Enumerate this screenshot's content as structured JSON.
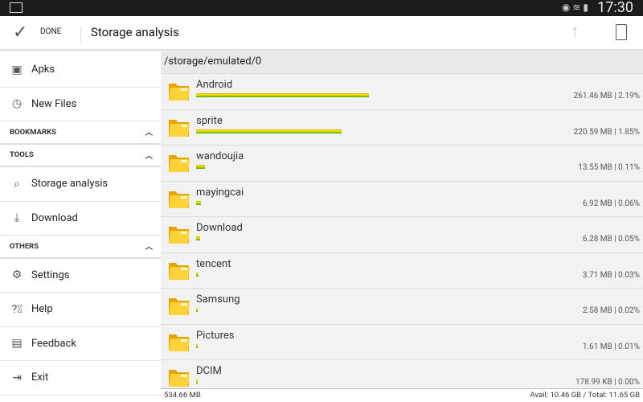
{
  "status": {
    "time": "17:30"
  },
  "actionbar": {
    "done": "DONE",
    "title": "Storage analysis"
  },
  "sidebar": {
    "top_items": [
      {
        "label": "Apks",
        "icon": "android-icon"
      },
      {
        "label": "New Files",
        "icon": "clock-icon"
      }
    ],
    "bookmarks": "BOOKMARKS",
    "tools": "TOOLS",
    "tool_items": [
      {
        "label": "Storage analysis",
        "icon": "storage-analysis-icon"
      },
      {
        "label": "Download",
        "icon": "download-icon"
      }
    ],
    "others": "OTHERS",
    "other_items": [
      {
        "label": "Settings",
        "icon": "gear-icon"
      },
      {
        "label": "Help",
        "icon": "help-icon"
      },
      {
        "label": "Feedback",
        "icon": "feedback-icon"
      },
      {
        "label": "Exit",
        "icon": "exit-icon"
      }
    ]
  },
  "main": {
    "path": "/storage/emulated/0",
    "folders": [
      {
        "name": "Android",
        "size": "261.46 MB | 2.19%",
        "mb": 261.46
      },
      {
        "name": "sprite",
        "size": "220.59 MB | 1.85%",
        "mb": 220.59
      },
      {
        "name": "wandoujia",
        "size": "13.55 MB | 0.11%",
        "mb": 13.55
      },
      {
        "name": "mayingcai",
        "size": "6.92 MB | 0.06%",
        "mb": 6.92
      },
      {
        "name": "Download",
        "size": "6.28 MB | 0.05%",
        "mb": 6.28
      },
      {
        "name": "tencent",
        "size": "3.71 MB | 0.03%",
        "mb": 3.71
      },
      {
        "name": "Samsung",
        "size": "2.58 MB | 0.02%",
        "mb": 2.58
      },
      {
        "name": "Pictures",
        "size": "1.61 MB | 0.01%",
        "mb": 1.61
      },
      {
        "name": "DCIM",
        "size": "178.99 KB | 0.00%",
        "mb": 0.17
      }
    ],
    "total": "534.66 MB",
    "avail": "Avail: 10.46 GB / Total: 11.65 GB"
  }
}
